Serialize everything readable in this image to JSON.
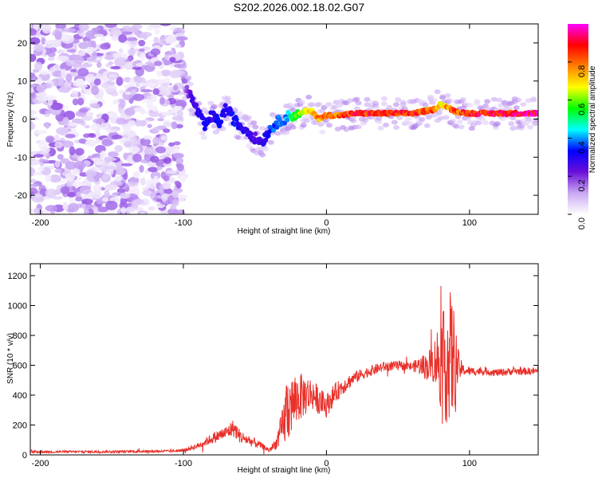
{
  "title": "S202.2026.002.18.02.G07",
  "colors": {
    "line": "#e8302a",
    "axis": "#000000",
    "background": "#ffffff"
  },
  "chart_data": [
    {
      "type": "heatmap",
      "title": "S202.2026.002.18.02.G07",
      "xlabel": "Height of straight line (km)",
      "ylabel": "Frequency (Hz)",
      "xlim": [
        -207,
        148
      ],
      "ylim": [
        -25,
        25
      ],
      "xticks": [
        -200,
        -100,
        0,
        100
      ],
      "yticks": [
        -20,
        -10,
        0,
        10,
        20
      ],
      "colorbar": {
        "label": "Normalized spectral amplitude",
        "range": [
          0,
          1
        ],
        "ticks": [
          0.0,
          0.2,
          0.4,
          0.6,
          0.8
        ],
        "colors": [
          "#ffffff",
          "#c9a8f3",
          "#6a0fd8",
          "#0000ff",
          "#00ffff",
          "#00ff00",
          "#ffff00",
          "#ff8000",
          "#ff0000",
          "#ff00ff"
        ]
      },
      "ridge": {
        "x": [
          -100,
          -95,
          -90,
          -85,
          -80,
          -75,
          -70,
          -65,
          -60,
          -55,
          -50,
          -45,
          -40,
          -35,
          -30,
          -25,
          -20,
          -15,
          -10,
          -5,
          0,
          10,
          20,
          40,
          60,
          75,
          80,
          85,
          90,
          100,
          120,
          148
        ],
        "freq": [
          10,
          6,
          2,
          -2,
          1,
          -1,
          3,
          0,
          -2,
          -3,
          -5,
          -6,
          -3,
          -1,
          0,
          1,
          1,
          2,
          2,
          0,
          1,
          1,
          1.5,
          1.5,
          1.5,
          2.5,
          4,
          3,
          2,
          1.5,
          1.5,
          1.5
        ],
        "amplitude": [
          0.15,
          0.25,
          0.3,
          0.35,
          0.3,
          0.35,
          0.3,
          0.35,
          0.3,
          0.3,
          0.25,
          0.3,
          0.35,
          0.4,
          0.4,
          0.5,
          0.6,
          0.7,
          0.75,
          0.8,
          0.85,
          0.85,
          0.9,
          0.9,
          0.9,
          0.85,
          0.7,
          0.8,
          0.85,
          0.9,
          0.95,
          0.95
        ]
      },
      "noise_region": {
        "x_range": [
          -207,
          -100
        ],
        "freq_range": [
          -25,
          25
        ],
        "amplitude_range": [
          0.02,
          0.18
        ]
      }
    },
    {
      "type": "line",
      "xlabel": "Height of straight line (km)",
      "ylabel": "SNR (10 * v/v)",
      "xlim": [
        -207,
        148
      ],
      "ylim": [
        0,
        1280
      ],
      "xticks": [
        -200,
        -100,
        0,
        100
      ],
      "yticks": [
        0,
        200,
        400,
        600,
        800,
        1000,
        1200
      ],
      "series": [
        {
          "name": "SNR",
          "x": [
            -207,
            -150,
            -110,
            -100,
            -90,
            -80,
            -70,
            -65,
            -60,
            -50,
            -45,
            -40,
            -35,
            -30,
            -28,
            -25,
            -20,
            -15,
            -10,
            -5,
            0,
            5,
            10,
            20,
            30,
            40,
            50,
            60,
            65,
            70,
            75,
            78,
            80,
            82,
            85,
            88,
            90,
            92,
            95,
            100,
            110,
            120,
            130,
            148
          ],
          "y": [
            20,
            22,
            25,
            30,
            60,
            110,
            150,
            180,
            120,
            80,
            60,
            30,
            80,
            200,
            300,
            330,
            380,
            400,
            410,
            360,
            330,
            400,
            450,
            520,
            560,
            590,
            600,
            590,
            600,
            590,
            620,
            640,
            600,
            620,
            640,
            650,
            620,
            590,
            570,
            560,
            560,
            550,
            560,
            560
          ],
          "noise": [
            8,
            8,
            8,
            10,
            20,
            35,
            45,
            60,
            45,
            30,
            20,
            15,
            40,
            150,
            250,
            200,
            170,
            140,
            110,
            90,
            80,
            70,
            60,
            40,
            35,
            35,
            30,
            30,
            60,
            90,
            140,
            250,
            300,
            350,
            480,
            430,
            300,
            120,
            40,
            30,
            25,
            25,
            25,
            25
          ]
        }
      ]
    }
  ]
}
